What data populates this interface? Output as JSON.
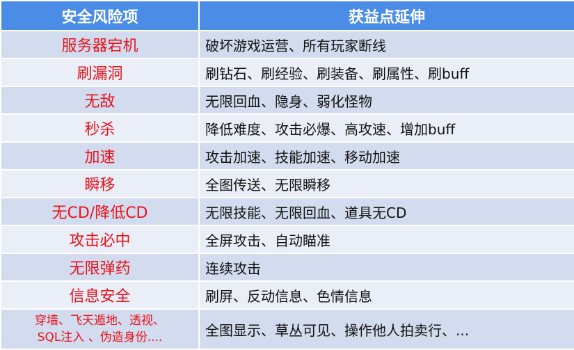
{
  "header": {
    "col1": "安全风险项",
    "col2": "获益点延伸"
  },
  "colors": {
    "header_bg": "#4a8ce6",
    "risk_text": "#e8121b",
    "row_dark": "#d2dcee",
    "row_light": "#e9eef7"
  },
  "rows": [
    {
      "risk": "服务器宕机",
      "gain": "破坏游戏运营、所有玩家断线"
    },
    {
      "risk": "刷漏洞",
      "gain": "刷钻石、刷经验、刷装备、刷属性、刷buff"
    },
    {
      "risk": "无敌",
      "gain": "无限回血、隐身、弱化怪物"
    },
    {
      "risk": "秒杀",
      "gain": "降低难度、攻击必爆、高攻速、增加buff"
    },
    {
      "risk": "加速",
      "gain": "攻击加速、技能加速、移动加速"
    },
    {
      "risk": "瞬移",
      "gain": "全图传送、无限瞬移"
    },
    {
      "risk": "无CD/降低CD",
      "gain": "无限技能、无限回血、道具无CD"
    },
    {
      "risk": "攻击必中",
      "gain": "全屏攻击、自动瞄准"
    },
    {
      "risk": "无限弹药",
      "gain": "连续攻击"
    },
    {
      "risk": "信息安全",
      "gain": "刷屏、反动信息、色情信息"
    }
  ],
  "last_row": {
    "risk_line1": "穿墙、飞天遁地、透视、",
    "risk_line2": "SQL注入 、伪造身份....",
    "gain": "全图显示、草丛可见、操作他人拍卖行、..."
  }
}
